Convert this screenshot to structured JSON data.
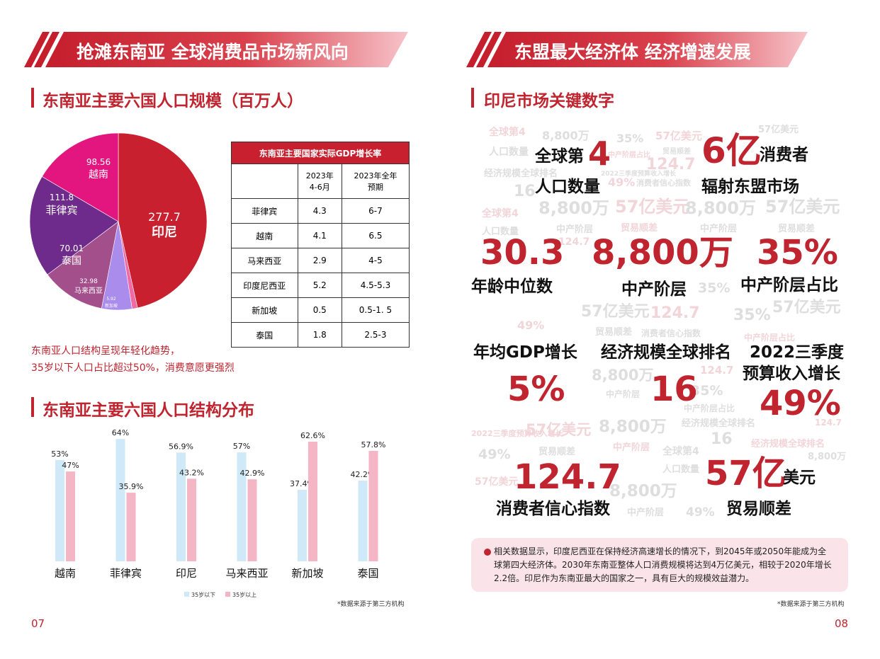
{
  "left_banner": "抢滩东南亚 全球消费品市场新风向",
  "right_banner": "东盟最大经济体 经济增速发展",
  "chart_data": [
    {
      "type": "pie",
      "title": "东南亚主要六国人口规模（百万人）",
      "categories": [
        "印尼",
        "新加坡",
        "马来西亚",
        "泰国",
        "菲律宾",
        "越南"
      ],
      "values": [
        277.7,
        5.92,
        32.98,
        70.01,
        111.8,
        98.56
      ],
      "colors": [
        "#c8202e",
        "#f06aa6",
        "#a98cec",
        "#a24f8c",
        "#6e2b8c",
        "#e3157f"
      ]
    },
    {
      "type": "bar",
      "title": "东南亚主要六国人口结构分布",
      "categories": [
        "越南",
        "菲律宾",
        "印尼",
        "马来西亚",
        "新加坡",
        "泰国"
      ],
      "series": [
        {
          "name": "35岁以下",
          "color": "#cfe9f8",
          "values": [
            53,
            64,
            56.9,
            57,
            37.4,
            42.2
          ],
          "value_labels": [
            "53%",
            "64%",
            "56.9%",
            "57%",
            "37.4%",
            "42.2%"
          ]
        },
        {
          "name": "35岁以上",
          "color": "#f4b5c5",
          "values": [
            47,
            35.9,
            43.2,
            42.9,
            62.6,
            57.8
          ],
          "value_labels": [
            "47%",
            "35.9%",
            "43.2%",
            "42.9%",
            "62.6%",
            "57.8%"
          ]
        }
      ]
    }
  ],
  "gdp_table": {
    "title": "东南亚主要国家实际GDP增长率",
    "header": [
      "",
      "2023年\n4-6月",
      "2023年全年\n预期"
    ],
    "rows": [
      [
        "菲律宾",
        4.3,
        "6-7"
      ],
      [
        "越南",
        4.1,
        6.5
      ],
      [
        "马来西亚",
        2.9,
        "4-5"
      ],
      [
        "印度尼西亚",
        5.2,
        "4.5-5.3"
      ],
      [
        "新加坡",
        0.5,
        "0.5-1. 5"
      ],
      [
        "泰国",
        1.8,
        "2.5-3"
      ]
    ]
  },
  "left_note": [
    "东南亚人口结构呈现年轻化趋势，",
    "35岁以下人口占比超过50%，消费意愿更强烈"
  ],
  "left_source": "*数据来源于第三方机构",
  "left_page_number": "07",
  "right_heading": "印尼市场关键数字",
  "key_figures": {
    "rank": {
      "prefix": "全球第",
      "number": "4",
      "label": "人口数量"
    },
    "consumers": {
      "number": "6亿",
      "unit": "消费者",
      "label": "辐射东盟市场"
    },
    "median_age": {
      "number": "30.3",
      "label": "年龄中位数"
    },
    "middle_class": {
      "number": "8,800万",
      "label": "中产阶层"
    },
    "middle_share": {
      "number": "35%",
      "label": "中产阶层占比"
    },
    "gdp_growth": {
      "label": "年均GDP增长",
      "number": "5%"
    },
    "economy_rank": {
      "label": "经济规模全球排名",
      "number": "16"
    },
    "budget": {
      "label": [
        "2022三季度",
        "预算收入增长"
      ],
      "number": "49%"
    },
    "confidence": {
      "number": "124.7",
      "label": "消费者信心指数"
    },
    "trade": {
      "number": "57亿",
      "unit": "美元",
      "label": "贸易顺差"
    }
  },
  "background_words": [
    "全球第4",
    "8,800万",
    "35%",
    "57亿美元",
    "57亿美元",
    "人口数量",
    "中产阶层占比",
    "贸易顺差",
    "经济规模全球排名",
    "124.7",
    "2022三季度预算收入增长",
    "消费者信心指数",
    "49%",
    "16",
    "8,800万",
    "57亿美元",
    "8,800万",
    "57亿美元",
    "全球第4",
    "人口数量",
    "中产阶层",
    "贸易顺差",
    "中产阶层",
    "贸易顺差",
    "124.7",
    "35%",
    "57亿美元",
    "124.7",
    "35%",
    "57亿美元",
    "49%",
    "贸易顺差",
    "消费者信心指数",
    "中产阶层占比",
    "8,800万",
    "35%",
    "124.7",
    "中产阶层",
    "中产阶层占比",
    "57亿美元",
    "8,800万",
    "经济规模全球排名",
    "2022三季度预算收入增长",
    "49%",
    "贸易顺差",
    "中产阶层",
    "全球第4",
    "16",
    "经济规模全球排名",
    "8,800万",
    "人口数量",
    "57亿美元",
    "49%",
    "中产阶层",
    "124.7",
    "8,800万"
  ],
  "right_note": "相关数据显示，印度尼西亚在保持经济高速增长的情况下，到2045年或2050年能成为全球第四大经济体。2030年东南亚整体人口消费规模将达到4万亿美元，相较于2020年增长2.2倍。印尼作为东南亚最大的国家之一，具有巨大的规模效益潜力。",
  "right_source": "*数据来源于第三方机构",
  "right_page_number": "08"
}
